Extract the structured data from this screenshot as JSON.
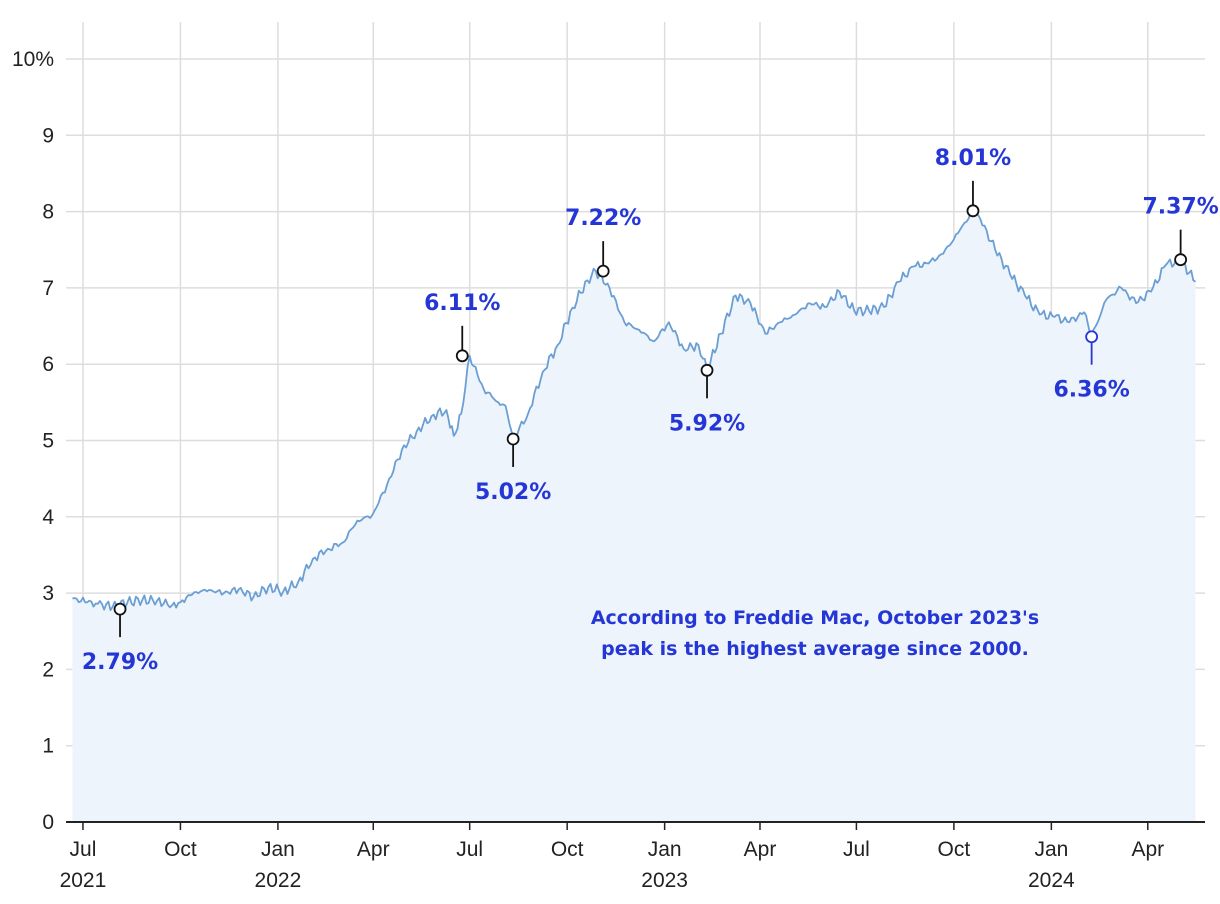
{
  "chart_data": {
    "type": "area",
    "title": "",
    "xlabel": "",
    "ylabel": "",
    "ylim": [
      0,
      10
    ],
    "y_ticks": [
      {
        "value": 0,
        "label": "0"
      },
      {
        "value": 1,
        "label": "1"
      },
      {
        "value": 2,
        "label": "2"
      },
      {
        "value": 3,
        "label": "3"
      },
      {
        "value": 4,
        "label": "4"
      },
      {
        "value": 5,
        "label": "5"
      },
      {
        "value": 6,
        "label": "6"
      },
      {
        "value": 7,
        "label": "7"
      },
      {
        "value": 8,
        "label": "8"
      },
      {
        "value": 9,
        "label": "9"
      },
      {
        "value": 10,
        "label": "10%"
      }
    ],
    "x_range": [
      "2021-06-15",
      "2024-05-25"
    ],
    "x_ticks": [
      {
        "date": "2021-07-01",
        "label": "Jul",
        "year": "2021"
      },
      {
        "date": "2021-10-01",
        "label": "Oct",
        "year": ""
      },
      {
        "date": "2022-01-01",
        "label": "Jan",
        "year": "2022"
      },
      {
        "date": "2022-04-01",
        "label": "Apr",
        "year": ""
      },
      {
        "date": "2022-07-01",
        "label": "Jul",
        "year": ""
      },
      {
        "date": "2022-10-01",
        "label": "Oct",
        "year": ""
      },
      {
        "date": "2023-01-01",
        "label": "Jan",
        "year": "2023"
      },
      {
        "date": "2023-04-01",
        "label": "Apr",
        "year": ""
      },
      {
        "date": "2023-07-01",
        "label": "Jul",
        "year": ""
      },
      {
        "date": "2023-10-01",
        "label": "Oct",
        "year": ""
      },
      {
        "date": "2024-01-01",
        "label": "Jan",
        "year": "2024"
      },
      {
        "date": "2024-04-01",
        "label": "Apr",
        "year": ""
      }
    ],
    "grid": true,
    "series": [
      {
        "points": [
          [
            "2021-06-21",
            2.93
          ],
          [
            "2021-07-05",
            2.88
          ],
          [
            "2021-07-15",
            2.86
          ],
          [
            "2021-07-29",
            2.82
          ],
          [
            "2021-08-12",
            2.88
          ],
          [
            "2021-08-26",
            2.91
          ],
          [
            "2021-09-09",
            2.9
          ],
          [
            "2021-09-23",
            2.84
          ],
          [
            "2021-10-01",
            2.88
          ],
          [
            "2021-10-14",
            3.01
          ],
          [
            "2021-10-28",
            3.04
          ],
          [
            "2021-11-11",
            3.0
          ],
          [
            "2021-11-25",
            3.05
          ],
          [
            "2021-12-09",
            2.95
          ],
          [
            "2021-12-23",
            3.08
          ],
          [
            "2022-01-06",
            3.02
          ],
          [
            "2022-01-20",
            3.14
          ],
          [
            "2022-02-03",
            3.45
          ],
          [
            "2022-02-17",
            3.58
          ],
          [
            "2022-03-03",
            3.66
          ],
          [
            "2022-03-17",
            3.95
          ],
          [
            "2022-03-31",
            4.02
          ],
          [
            "2022-04-14",
            4.42
          ],
          [
            "2022-04-28",
            4.88
          ],
          [
            "2022-05-12",
            5.12
          ],
          [
            "2022-05-26",
            5.32
          ],
          [
            "2022-06-09",
            5.4
          ],
          [
            "2022-06-16",
            5.06
          ],
          [
            "2022-06-23",
            5.35
          ],
          [
            "2022-07-01",
            6.11
          ],
          [
            "2022-07-14",
            5.68
          ],
          [
            "2022-07-28",
            5.5
          ],
          [
            "2022-08-04",
            5.45
          ],
          [
            "2022-08-11",
            5.02
          ],
          [
            "2022-08-25",
            5.35
          ],
          [
            "2022-09-08",
            5.9
          ],
          [
            "2022-09-22",
            6.25
          ],
          [
            "2022-10-06",
            6.74
          ],
          [
            "2022-10-20",
            7.1
          ],
          [
            "2022-10-28",
            7.22
          ],
          [
            "2022-11-10",
            7.0
          ],
          [
            "2022-11-24",
            6.55
          ],
          [
            "2022-12-08",
            6.45
          ],
          [
            "2022-12-22",
            6.3
          ],
          [
            "2023-01-05",
            6.55
          ],
          [
            "2023-01-19",
            6.2
          ],
          [
            "2023-02-02",
            6.25
          ],
          [
            "2023-02-10",
            5.92
          ],
          [
            "2023-02-23",
            6.4
          ],
          [
            "2023-03-09",
            6.9
          ],
          [
            "2023-03-23",
            6.8
          ],
          [
            "2023-04-06",
            6.4
          ],
          [
            "2023-04-20",
            6.55
          ],
          [
            "2023-05-04",
            6.65
          ],
          [
            "2023-05-18",
            6.8
          ],
          [
            "2023-06-01",
            6.75
          ],
          [
            "2023-06-15",
            6.95
          ],
          [
            "2023-06-29",
            6.7
          ],
          [
            "2023-07-13",
            6.7
          ],
          [
            "2023-07-27",
            6.75
          ],
          [
            "2023-08-10",
            7.08
          ],
          [
            "2023-08-24",
            7.28
          ],
          [
            "2023-09-07",
            7.32
          ],
          [
            "2023-09-21",
            7.45
          ],
          [
            "2023-10-05",
            7.72
          ],
          [
            "2023-10-19",
            8.01
          ],
          [
            "2023-10-26",
            7.9
          ],
          [
            "2023-11-09",
            7.5
          ],
          [
            "2023-11-23",
            7.18
          ],
          [
            "2023-12-07",
            6.9
          ],
          [
            "2023-12-21",
            6.65
          ],
          [
            "2024-01-04",
            6.62
          ],
          [
            "2024-01-18",
            6.55
          ],
          [
            "2024-02-01",
            6.68
          ],
          [
            "2024-02-08",
            6.36
          ],
          [
            "2024-02-22",
            6.85
          ],
          [
            "2024-03-07",
            7.0
          ],
          [
            "2024-03-21",
            6.8
          ],
          [
            "2024-04-04",
            6.95
          ],
          [
            "2024-04-18",
            7.3
          ],
          [
            "2024-05-02",
            7.37
          ],
          [
            "2024-05-16",
            7.08
          ]
        ]
      }
    ],
    "annotations": [
      {
        "date": "2021-08-05",
        "value": 2.79,
        "label": "2.79%",
        "placement": "below"
      },
      {
        "date": "2022-06-24",
        "value": 6.11,
        "label": "6.11%",
        "placement": "above"
      },
      {
        "date": "2022-08-11",
        "value": 5.02,
        "label": "5.02%",
        "placement": "below"
      },
      {
        "date": "2022-11-04",
        "value": 7.22,
        "label": "7.22%",
        "placement": "above"
      },
      {
        "date": "2023-02-10",
        "value": 5.92,
        "label": "5.92%",
        "placement": "below"
      },
      {
        "date": "2023-10-19",
        "value": 8.01,
        "label": "8.01%",
        "placement": "above"
      },
      {
        "date": "2024-02-08",
        "value": 6.36,
        "label": "6.36%",
        "placement": "below"
      },
      {
        "date": "2024-05-02",
        "value": 7.37,
        "label": "7.37%",
        "placement": "above"
      }
    ],
    "note": [
      "According to Freddie Mac, October 2023's",
      "peak is the highest average since 2000."
    ],
    "colors": {
      "line": "#6b9fd4",
      "area": "#eef4fc",
      "annotation": "#2536d6",
      "grid": "#dddddd"
    }
  }
}
